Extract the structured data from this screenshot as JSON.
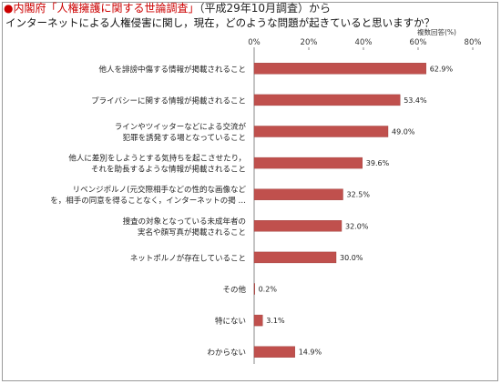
{
  "header": {
    "title_marker": "●",
    "title_red": "内閣府「人権擁護に関する世論調査」",
    "title_dark": "（平成29年10月調査）から",
    "subtitle": "インターネットによる人権侵害に関し，現在，どのような問題が起きていると思いますか？",
    "note": "複数回答(%)"
  },
  "colors": {
    "bar_fill": "#c0504d",
    "title_red": "#cc0000"
  },
  "chart_data": {
    "type": "bar",
    "orientation": "horizontal",
    "xlim": [
      0,
      80
    ],
    "ticks": [
      "0%",
      "20%",
      "40%",
      "60%",
      "80%"
    ],
    "tick_values": [
      0,
      20,
      40,
      60,
      80
    ],
    "grid": false,
    "categories": [
      [
        "他人を誹謗中傷する情報が掲載されること"
      ],
      [
        "プライバシーに関する情報が掲載されること"
      ],
      [
        "ラインやツイッターなどによる交流が",
        "犯罪を誘発する場となっていること"
      ],
      [
        "他人に差別をしようとする気持ちを起こさせたり，",
        "それを助長するような情報が掲載されること"
      ],
      [
        "リベンジポルノ(元交際相手などの性的な画像など",
        "を，相手の同意を得ることなく，インターネットの掲 …"
      ],
      [
        "捜査の対象となっている未成年者の",
        "実名や顔写真が掲載されること"
      ],
      [
        "ネットポルノが存在していること"
      ],
      [
        "その他"
      ],
      [
        "特にない"
      ],
      [
        "わからない"
      ]
    ],
    "values": [
      62.9,
      53.4,
      49.0,
      39.6,
      32.5,
      32.0,
      30.0,
      0.2,
      3.1,
      14.9
    ],
    "value_labels": [
      "62.9%",
      "53.4%",
      "49.0%",
      "39.6%",
      "32.5%",
      "32.0%",
      "30.0%",
      "0.2%",
      "3.1%",
      "14.9%"
    ]
  }
}
